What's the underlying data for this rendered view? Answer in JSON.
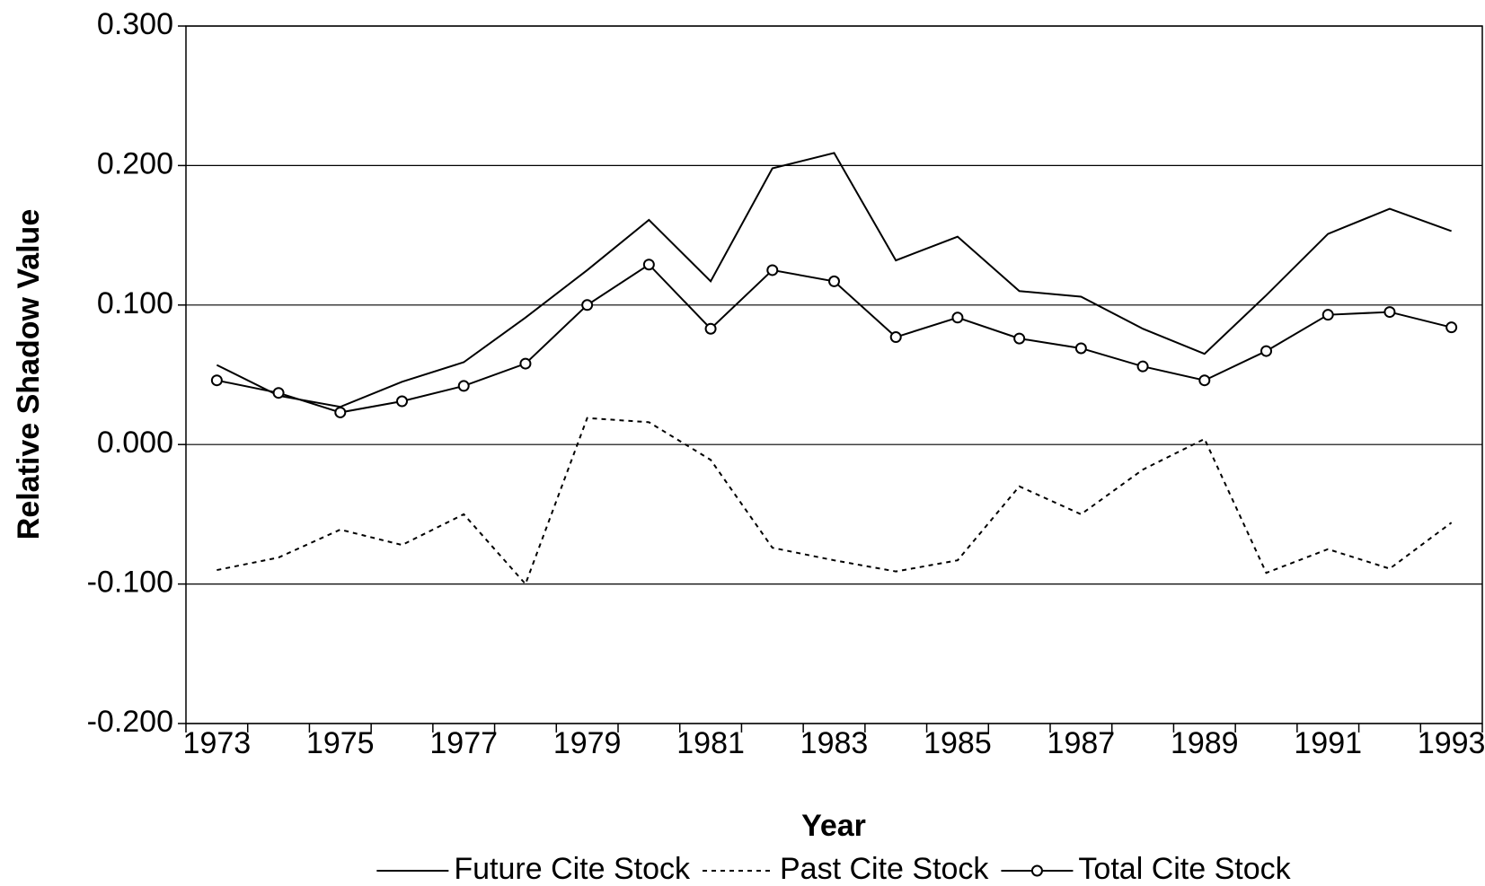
{
  "chart_data": {
    "type": "line",
    "y_label": "Relative Shadow Value",
    "x_label": "Year",
    "categories": [
      "1973",
      null,
      "1975",
      null,
      "1977",
      null,
      "1979",
      null,
      "1981",
      null,
      "1983",
      null,
      "1985",
      null,
      "1987",
      null,
      "1989",
      null,
      "1991",
      null,
      "1993"
    ],
    "ylim": [
      -0.2,
      0.3
    ],
    "yticks": [
      {
        "value": -0.2,
        "label": "-0.200"
      },
      {
        "value": -0.1,
        "label": "-0.100"
      },
      {
        "value": 0,
        "label": "0.000"
      },
      {
        "value": 0.1,
        "label": "0.100"
      },
      {
        "value": 0.2,
        "label": "0.200"
      },
      {
        "value": 0.3,
        "label": "0.300"
      }
    ],
    "grid": true,
    "legend": "bottom",
    "series": [
      {
        "name": "Future Cite Stock",
        "color": "#000000",
        "line_style": "solid",
        "marker": "none",
        "values": [
          0.057,
          0.035,
          0.027,
          0.045,
          0.059,
          0.091,
          0.125,
          0.161,
          0.117,
          0.198,
          0.209,
          0.132,
          0.149,
          0.11,
          0.106,
          0.083,
          0.065,
          0.107,
          0.151,
          0.169,
          0.153
        ]
      },
      {
        "name": "Past Cite Stock",
        "color": "#000000",
        "line_style": "dashed",
        "marker": "none",
        "values": [
          -0.09,
          -0.081,
          -0.061,
          -0.072,
          -0.05,
          -0.1,
          0.019,
          0.016,
          -0.011,
          -0.074,
          -0.083,
          -0.091,
          -0.083,
          -0.03,
          -0.05,
          -0.018,
          0.004,
          -0.092,
          -0.075,
          -0.089,
          -0.056
        ]
      },
      {
        "name": "Total Cite Stock",
        "color": "#000000",
        "line_style": "solid",
        "marker": "circle",
        "values": [
          0.046,
          0.037,
          0.023,
          0.031,
          0.042,
          0.058,
          0.1,
          0.129,
          0.083,
          0.125,
          0.117,
          0.077,
          0.091,
          0.076,
          0.069,
          0.056,
          0.046,
          0.067,
          0.093,
          0.095,
          0.084
        ]
      }
    ]
  }
}
